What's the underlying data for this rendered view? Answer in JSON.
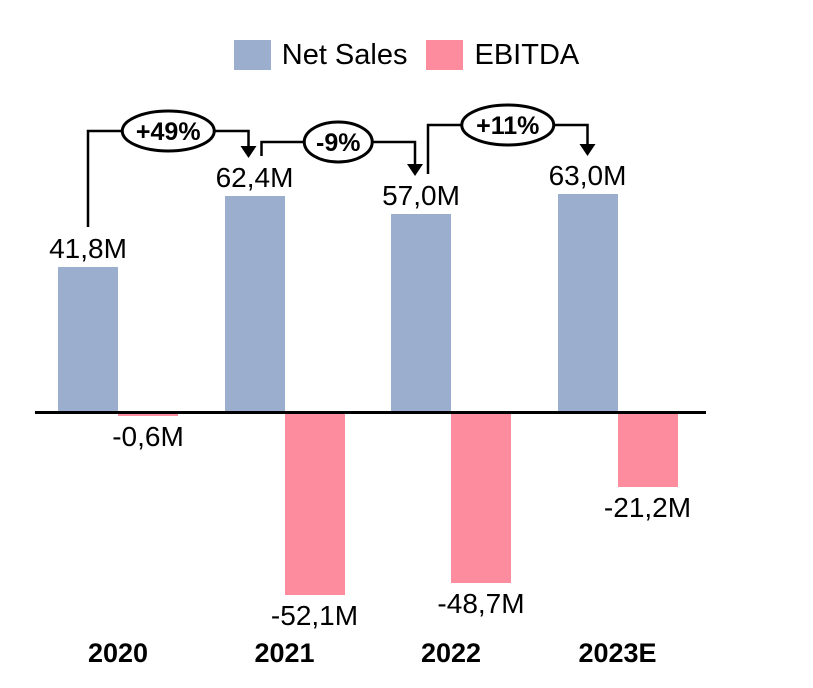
{
  "chart_data": {
    "type": "bar",
    "title": "",
    "categories": [
      "2020",
      "2021",
      "2022",
      "2023E"
    ],
    "series": [
      {
        "name": "Net Sales",
        "color": "#9BAECD",
        "values": [
          41.8,
          62.4,
          57.0,
          63.0
        ],
        "labels": [
          "41,8M",
          "62,4M",
          "57,0M",
          "63,0M"
        ]
      },
      {
        "name": "EBITDA",
        "color": "#FD8C9E",
        "values": [
          -0.6,
          -52.1,
          -48.7,
          -21.2
        ],
        "labels": [
          "-0,6M",
          "-52,1M",
          "-48,7M",
          "-21,2M"
        ]
      }
    ],
    "growth_annotations": [
      {
        "label": "+49%",
        "from": "2020",
        "to": "2021"
      },
      {
        "label": "-9%",
        "from": "2021",
        "to": "2022"
      },
      {
        "label": "+11%",
        "from": "2022",
        "to": "2023E"
      }
    ],
    "legend_position": "top",
    "axis": {
      "zero_line_visible": true,
      "value_axis_visible": false,
      "grid": false
    },
    "annotation_style": {
      "line_color": "#000000",
      "badge_fill": "#ffffff",
      "badge_stroke": "#000000"
    }
  }
}
